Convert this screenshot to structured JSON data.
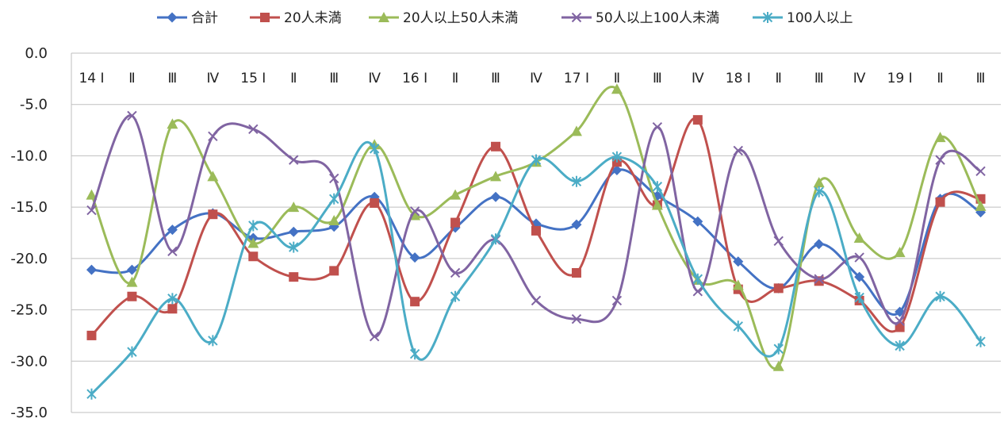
{
  "chart_data": {
    "type": "line",
    "categories": [
      "14 Ⅰ",
      "Ⅱ",
      "Ⅲ",
      "Ⅳ",
      "15 Ⅰ",
      "Ⅱ",
      "Ⅲ",
      "Ⅳ",
      "16 Ⅰ",
      "Ⅱ",
      "Ⅲ",
      "Ⅳ",
      "17 Ⅰ",
      "Ⅱ",
      "Ⅲ",
      "Ⅳ",
      "18 Ⅰ",
      "Ⅱ",
      "Ⅲ",
      "Ⅳ",
      "19 Ⅰ",
      "Ⅱ",
      "Ⅲ"
    ],
    "ylim": [
      -35,
      0
    ],
    "yticks": [
      "0.0",
      "-5.0",
      "-10.0",
      "-15.0",
      "-20.0",
      "-25.0",
      "-30.0",
      "-35.0"
    ],
    "grid": true,
    "legend_position": "top",
    "series": [
      {
        "name": "合計",
        "color": "#4472C4",
        "marker": "diamond",
        "values": [
          -21.1,
          -21.1,
          -17.2,
          -15.6,
          -18.0,
          -17.4,
          -16.9,
          -14.0,
          -19.9,
          -17.0,
          -14.0,
          -16.6,
          -16.7,
          -11.4,
          -13.9,
          -16.4,
          -20.3,
          -22.9,
          -18.6,
          -21.8,
          -25.2,
          -14.2,
          -15.5
        ]
      },
      {
        "name": "20人未満",
        "color": "#C0504D",
        "marker": "square",
        "values": [
          -27.5,
          -23.7,
          -24.9,
          -15.7,
          -19.8,
          -21.8,
          -21.2,
          -14.6,
          -24.2,
          -16.5,
          -9.1,
          -17.3,
          -21.4,
          -10.6,
          -14.8,
          -6.5,
          -23.0,
          -22.9,
          -22.2,
          -24.1,
          -26.7,
          -14.5,
          -14.2
        ]
      },
      {
        "name": "20人以上50人未満",
        "color": "#9BBB59",
        "marker": "triangle",
        "values": [
          -13.8,
          -22.3,
          -6.9,
          -12.0,
          -18.5,
          -15.0,
          -16.3,
          -8.9,
          -15.8,
          -13.8,
          -12.0,
          -10.6,
          -7.6,
          -3.5,
          -14.8,
          -22.1,
          -22.6,
          -30.5,
          -12.6,
          -18.0,
          -19.4,
          -8.2,
          -14.9
        ]
      },
      {
        "name": "50人以上100人未満",
        "color": "#8064A2",
        "marker": "x",
        "values": [
          -15.3,
          -6.1,
          -19.3,
          -8.1,
          -7.4,
          -10.4,
          -12.2,
          -27.6,
          -15.4,
          -21.4,
          -18.2,
          -24.1,
          -25.9,
          -24.1,
          -7.2,
          -23.2,
          -9.5,
          -18.3,
          -22.0,
          -19.9,
          -26.1,
          -10.4,
          -11.5
        ]
      },
      {
        "name": "100人以上",
        "color": "#4BACC6",
        "marker": "star",
        "values": [
          -33.2,
          -29.1,
          -23.9,
          -28.0,
          -16.8,
          -18.9,
          -14.2,
          -9.3,
          -29.3,
          -23.7,
          -18.1,
          -10.4,
          -12.5,
          -10.1,
          -13.0,
          -22.0,
          -26.6,
          -28.8,
          -13.5,
          -23.8,
          -28.5,
          -23.7,
          -28.1
        ]
      }
    ]
  }
}
